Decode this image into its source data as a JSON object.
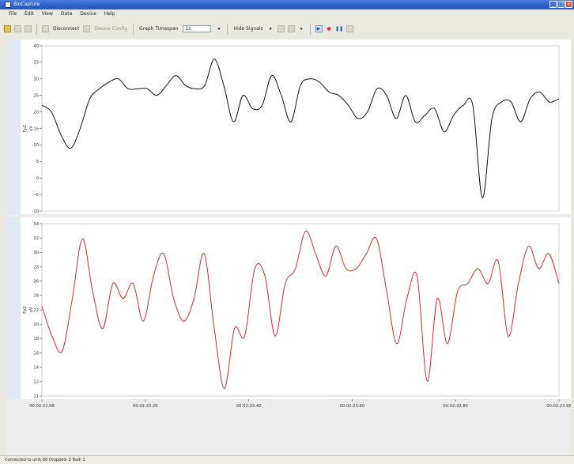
{
  "window": {
    "title": "BioCapture"
  },
  "menu": [
    "File",
    "Edit",
    "View",
    "Data",
    "Device",
    "Help"
  ],
  "toolbar": {
    "disconnect_label": "Disconnect",
    "device_config_label": "Device Config",
    "graph_timespan_label": "Graph Timespan",
    "graph_timespan_value": "1s",
    "hide_signals_label": "Hide Signals"
  },
  "status": {
    "text": "Connected to unit: 60  Dropped: 2  Bad: 1"
  },
  "chart_data": [
    {
      "type": "line",
      "series": [
        {
          "values": [
            22,
            20,
            13,
            9,
            15,
            24,
            27,
            29,
            30,
            27,
            27,
            27,
            25,
            28,
            31,
            28,
            27,
            28,
            36,
            28,
            17,
            25,
            21,
            22,
            31,
            25,
            17,
            28,
            30,
            29,
            26,
            25,
            22,
            18,
            20,
            27,
            25,
            18,
            25,
            17,
            19,
            21,
            14,
            19,
            22,
            22,
            -6,
            18,
            23,
            23,
            17,
            24,
            26,
            23,
            24
          ],
          "color": "#111111"
        }
      ],
      "ylim": [
        -10,
        40
      ],
      "yticks": [
        "40",
        "35",
        "30",
        "25",
        "20",
        "15",
        "10",
        "5",
        "0",
        "-5",
        "-10"
      ],
      "ylabel": "uV",
      "name_label": "Fp1"
    },
    {
      "type": "line",
      "series": [
        {
          "values": [
            23,
            19,
            17,
            24,
            32,
            25,
            20,
            26,
            24,
            26,
            21,
            27,
            30,
            24,
            21,
            24,
            30,
            20,
            12,
            20,
            19,
            28,
            27,
            19,
            26,
            28,
            33,
            30,
            27,
            31,
            28,
            28,
            30,
            32,
            25,
            18,
            24,
            27,
            13,
            24,
            18,
            25,
            26,
            28,
            26,
            29,
            19,
            26,
            31,
            28,
            30,
            26
          ],
          "color": "#e8281e"
        }
      ],
      "ylim": [
        11,
        34
      ],
      "yticks": [
        "34",
        "32",
        "30",
        "28",
        "26",
        "24",
        "22",
        "20",
        "18",
        "16",
        "14",
        "12",
        "11"
      ],
      "ylabel": "uV",
      "name_label": "Fp2"
    }
  ],
  "x_ticks": [
    "00:02:22.98",
    "00:02:23.20",
    "00:02:23.40",
    "00:02:23.60",
    "00:02:23.80",
    "00:02:23.98"
  ]
}
